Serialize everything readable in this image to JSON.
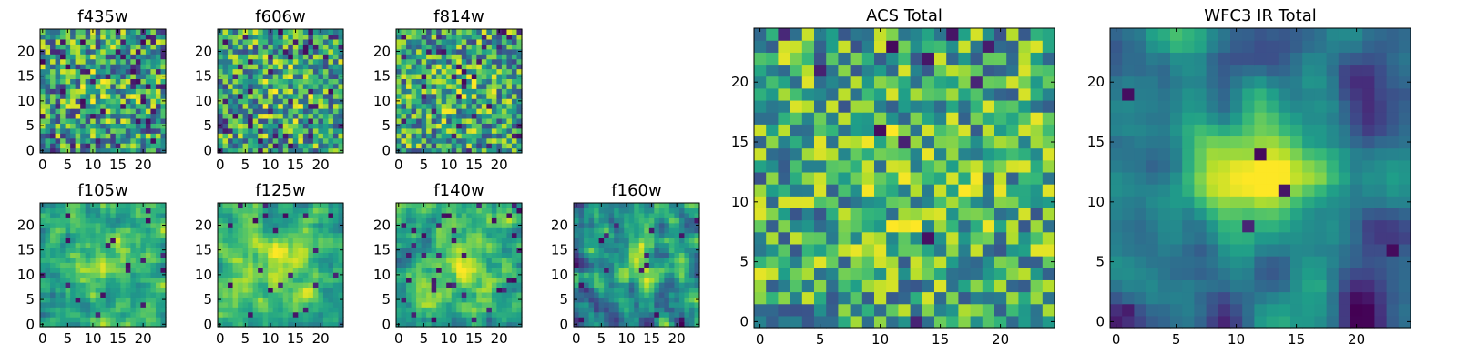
{
  "figure": {
    "colormap": "viridis",
    "colors": {
      "frame": "#000000",
      "background": "#ffffff"
    }
  },
  "chart_data": [
    {
      "type": "heatmap",
      "title": "f435w",
      "size": 25,
      "cmap": "viridis",
      "seed": 11,
      "pattern": "noise",
      "bright": 0.15,
      "spike": 0.09,
      "xticks": [
        0,
        5,
        10,
        15,
        20
      ],
      "yticks": [
        0,
        5,
        10,
        15,
        20
      ],
      "xlim": [
        0,
        25
      ],
      "ylim": [
        0,
        25
      ]
    },
    {
      "type": "heatmap",
      "title": "f606w",
      "size": 25,
      "cmap": "viridis",
      "seed": 23,
      "pattern": "noise",
      "bright": 0.2,
      "spike": 0.07,
      "xticks": [
        0,
        5,
        10,
        15,
        20
      ],
      "yticks": [
        0,
        5,
        10,
        15,
        20
      ],
      "xlim": [
        0,
        25
      ],
      "ylim": [
        0,
        25
      ]
    },
    {
      "type": "heatmap",
      "title": "f814w",
      "size": 25,
      "cmap": "viridis",
      "seed": 37,
      "pattern": "noise",
      "bright": 0.2,
      "spike": 0.06,
      "xticks": [
        0,
        5,
        10,
        15,
        20
      ],
      "yticks": [
        0,
        5,
        10,
        15,
        20
      ],
      "xlim": [
        0,
        25
      ],
      "ylim": [
        0,
        25
      ]
    },
    {
      "type": "heatmap",
      "title": "f105w",
      "size": 25,
      "cmap": "viridis",
      "seed": 41,
      "pattern": "smooth",
      "bright": 0.35,
      "spike": 0.02,
      "xticks": [
        0,
        5,
        10,
        15,
        20
      ],
      "yticks": [
        0,
        5,
        10,
        15,
        20
      ],
      "xlim": [
        0,
        25
      ],
      "ylim": [
        0,
        25
      ]
    },
    {
      "type": "heatmap",
      "title": "f125w",
      "size": 25,
      "cmap": "viridis",
      "seed": 53,
      "pattern": "smooth",
      "bright": 0.35,
      "spike": 0.04,
      "xticks": [
        0,
        5,
        10,
        15,
        20
      ],
      "yticks": [
        0,
        5,
        10,
        15,
        20
      ],
      "xlim": [
        0,
        25
      ],
      "ylim": [
        0,
        25
      ]
    },
    {
      "type": "heatmap",
      "title": "f140w",
      "size": 25,
      "cmap": "viridis",
      "seed": 67,
      "pattern": "smooth",
      "bright": 0.3,
      "spike": 0.04,
      "xticks": [
        0,
        5,
        10,
        15,
        20
      ],
      "yticks": [
        0,
        5,
        10,
        15,
        20
      ],
      "xlim": [
        0,
        25
      ],
      "ylim": [
        0,
        25
      ]
    },
    {
      "type": "heatmap",
      "title": "f160w",
      "size": 25,
      "cmap": "viridis",
      "seed": 79,
      "pattern": "smooth",
      "bright": 0.0,
      "spike": 0.03,
      "xticks": [
        0,
        5,
        10,
        15,
        20
      ],
      "yticks": [
        0,
        5,
        10,
        15,
        20
      ],
      "xlim": [
        0,
        25
      ],
      "ylim": [
        0,
        25
      ]
    },
    {
      "type": "heatmap",
      "title": "ACS Total",
      "size": 25,
      "cmap": "viridis",
      "seed": 97,
      "pattern": "acs",
      "bright": 0.25,
      "spike": 0.025,
      "xticks": [
        0,
        5,
        10,
        15,
        20
      ],
      "yticks": [
        0,
        5,
        10,
        15,
        20
      ],
      "xlim": [
        0,
        25
      ],
      "ylim": [
        0,
        25
      ]
    },
    {
      "type": "heatmap",
      "title": "WFC3 IR Total",
      "size": 25,
      "cmap": "viridis",
      "seed": 131,
      "pattern": "ir",
      "bright": 0.0,
      "spike": 0.02,
      "xticks": [
        0,
        5,
        10,
        15,
        20
      ],
      "yticks": [
        0,
        5,
        10,
        15,
        20
      ],
      "xlim": [
        0,
        25
      ],
      "ylim": [
        0,
        25
      ]
    }
  ]
}
